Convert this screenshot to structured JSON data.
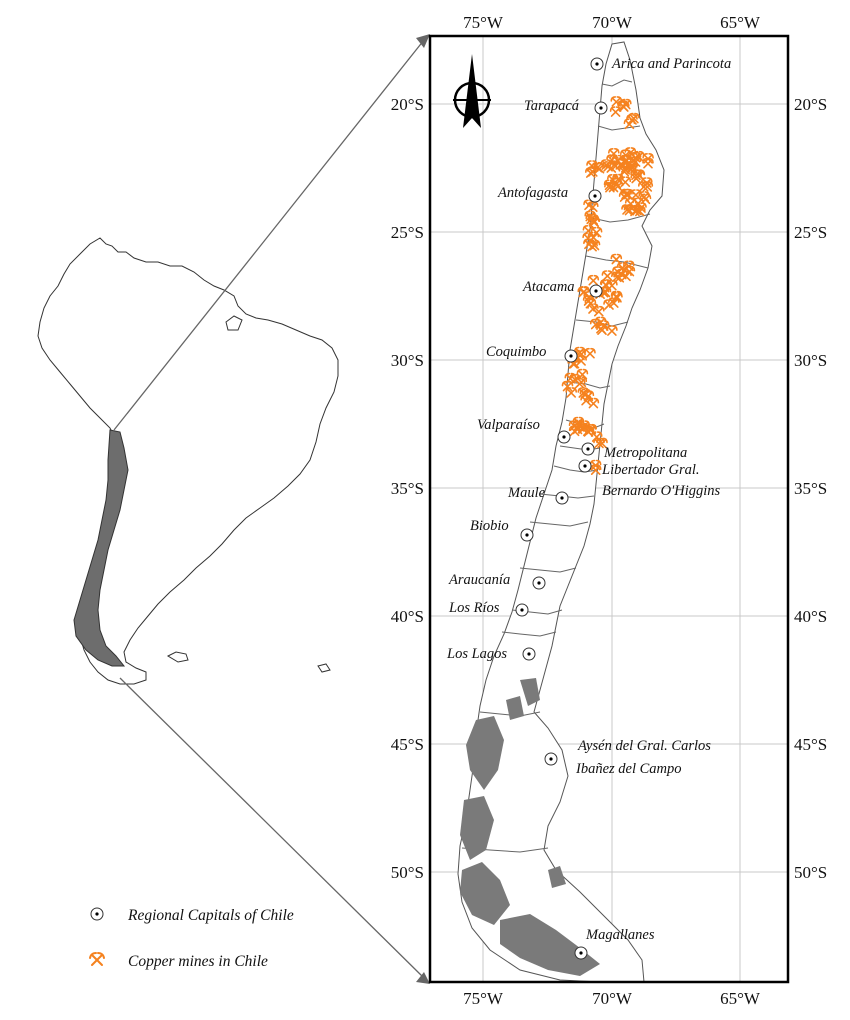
{
  "map": {
    "longitude_ticks": [
      "75°W",
      "70°W",
      "65°W"
    ],
    "latitude_ticks": [
      "20°S",
      "25°S",
      "30°S",
      "35°S",
      "40°S",
      "45°S",
      "50°S"
    ],
    "regions": [
      {
        "id": "arica",
        "lines": [
          "Arica and Parincota"
        ]
      },
      {
        "id": "tarapaca",
        "lines": [
          "Tarapacá"
        ]
      },
      {
        "id": "antofagasta",
        "lines": [
          "Antofagasta"
        ]
      },
      {
        "id": "atacama",
        "lines": [
          "Atacama"
        ]
      },
      {
        "id": "coquimbo",
        "lines": [
          "Coquimbo"
        ]
      },
      {
        "id": "valparaiso",
        "lines": [
          "Valparaíso"
        ]
      },
      {
        "id": "metropolitana",
        "lines": [
          "Metropolitana"
        ]
      },
      {
        "id": "ohiggins",
        "lines": [
          "Libertador Gral.",
          "Bernardo O'Higgins"
        ]
      },
      {
        "id": "maule",
        "lines": [
          "Maule"
        ]
      },
      {
        "id": "biobio",
        "lines": [
          "Biobio"
        ]
      },
      {
        "id": "araucania",
        "lines": [
          "Araucanía"
        ]
      },
      {
        "id": "losrios",
        "lines": [
          "Los Ríos"
        ]
      },
      {
        "id": "loslagos",
        "lines": [
          "Los Lagos"
        ]
      },
      {
        "id": "aysen",
        "lines": [
          "Aysén del Gral. Carlos",
          "Ibañez del Campo"
        ]
      },
      {
        "id": "magallanes",
        "lines": [
          "Magallanes"
        ]
      }
    ],
    "colors": {
      "mines": "#f5821f",
      "chile_fill": "#6d6d6d",
      "outline": "#555555",
      "grid": "#c8c8c8"
    },
    "north_arrow_icon": "north-arrow-icon"
  },
  "legend": {
    "capitals_label": "Regional Capitals of Chile",
    "mines_label": "Copper mines in Chile",
    "capitals_icon": "circle-dot-icon",
    "mines_icon": "pickaxe-icon"
  }
}
